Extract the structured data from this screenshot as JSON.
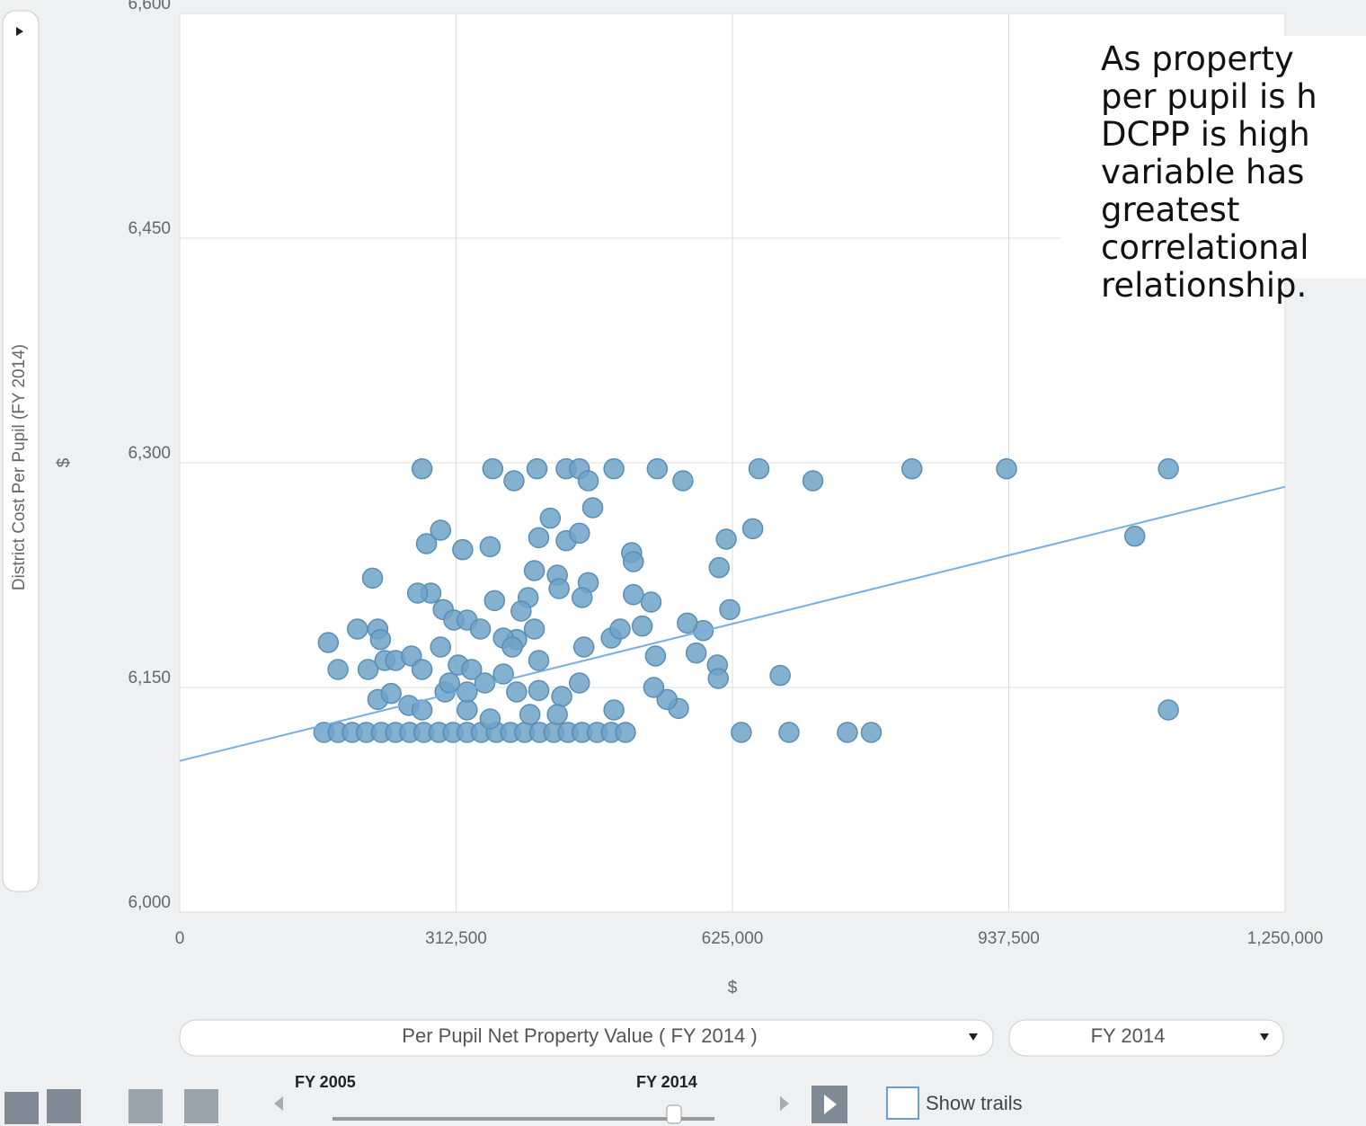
{
  "chart_data": {
    "type": "scatter",
    "y_axis_title": "District Cost Per Pupil (FY 2014)",
    "y_unit": "$",
    "x_unit": "$",
    "x_selector": "Per Pupil Net Property Value  ( FY 2014 )",
    "size_selector": "FY 2014",
    "slider_start": "FY 2005",
    "slider_end": "FY 2014",
    "show_trails": "Show trails",
    "annotation": [
      "As property",
      "per pupil is h",
      "DCPP is high",
      "variable has",
      "greatest",
      "correlational",
      "relationship."
    ],
    "color": "#6fa3c8",
    "grid": true,
    "xlim": [
      0,
      1250000
    ],
    "ylim": [
      6000,
      6600
    ],
    "xticks": [
      0,
      {
        "value": 312500,
        "label": "312,500"
      },
      {
        "value": 625000,
        "label": "625,000"
      },
      {
        "value": 937500,
        "label": "937,500"
      },
      {
        "value": 1250000,
        "label": "1,250,000"
      }
    ],
    "yticks": [
      {
        "value": 6000,
        "label": "6,000"
      },
      {
        "value": 6150,
        "label": "6,150"
      },
      {
        "value": 6300,
        "label": "6,300"
      },
      {
        "value": 6450,
        "label": "6,450"
      },
      {
        "value": 6600,
        "label": "6,600"
      }
    ],
    "trendline": {
      "x": [
        0,
        1250000
      ],
      "values": [
        6101,
        6284
      ],
      "color": "#7aaee0"
    },
    "x": [
      163000,
      179000,
      195000,
      211000,
      228000,
      244000,
      260000,
      276000,
      293000,
      309000,
      325000,
      341000,
      358000,
      374000,
      390000,
      407000,
      423000,
      439000,
      455000,
      472000,
      488000,
      504000,
      635000,
      689000,
      755000,
      782000,
      274000,
      354000,
      404000,
      437000,
      452000,
      491000,
      540000,
      655000,
      828000,
      935000,
      1118000,
      378000,
      462000,
      569000,
      716000,
      1080000,
      1118000,
      679000,
      648000,
      618000,
      610000,
      622000,
      608000,
      609000,
      592000,
      574000,
      584000,
      564000,
      551000,
      536000,
      538000,
      533000,
      513000,
      523000,
      511000,
      513000,
      467000,
      419000,
      406000,
      437000,
      452000,
      462000,
      455000,
      427000,
      401000,
      429000,
      394000,
      386000,
      401000,
      381000,
      356000,
      351000,
      320000,
      295000,
      279000,
      284000,
      269000,
      218000,
      298000,
      310000,
      325000,
      340000,
      366000,
      376000,
      406000,
      457000,
      488000,
      498000,
      168000,
      201000,
      224000,
      227000,
      179000,
      213000,
      232000,
      244000,
      262000,
      274000,
      295000,
      315000,
      330000,
      345000,
      366000,
      381000,
      406000,
      432000,
      452000,
      224000,
      239000,
      259000,
      274000,
      300000,
      325000,
      351000,
      396000,
      427000,
      491000,
      305000,
      325000
    ],
    "values": [
      6120,
      6120,
      6120,
      6120,
      6120,
      6120,
      6120,
      6120,
      6120,
      6120,
      6120,
      6120,
      6120,
      6120,
      6120,
      6120,
      6120,
      6120,
      6120,
      6120,
      6120,
      6120,
      6120,
      6120,
      6120,
      6120,
      6296,
      6296,
      6296,
      6296,
      6296,
      6296,
      6296,
      6296,
      6296,
      6296,
      6296,
      6288,
      6288,
      6288,
      6288,
      6251,
      6135,
      6158,
      6256,
      6249,
      6230,
      6202,
      6165,
      6156,
      6188,
      6193,
      6173,
      6136,
      6142,
      6150,
      6171,
      6207,
      6212,
      6191,
      6240,
      6234,
      6270,
      6263,
      6250,
      6248,
      6253,
      6220,
      6210,
      6225,
      6228,
      6216,
      6210,
      6201,
      6189,
      6182,
      6208,
      6244,
      6242,
      6255,
      6246,
      6213,
      6213,
      6223,
      6202,
      6195,
      6195,
      6189,
      6183,
      6177,
      6168,
      6177,
      6183,
      6189,
      6180,
      6189,
      6189,
      6182,
      6162,
      6162,
      6168,
      6168,
      6171,
      6162,
      6177,
      6165,
      6162,
      6153,
      6159,
      6147,
      6148,
      6144,
      6153,
      6142,
      6146,
      6138,
      6135,
      6147,
      6135,
      6129,
      6132,
      6132,
      6135,
      6153,
      6147
    ]
  }
}
